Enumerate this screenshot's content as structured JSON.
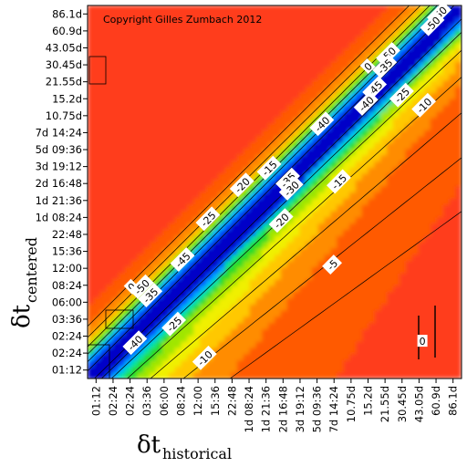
{
  "chart_data": {
    "type": "heatmap",
    "copyright": "Copyright Gilles Zumbach 2012",
    "xlabel": {
      "symbol": "δt",
      "subscript": "historical"
    },
    "ylabel": {
      "symbol": "δt",
      "subscript": "centered"
    },
    "ticks": [
      "01:12",
      "02:24",
      "02:24",
      "03:36",
      "06:00",
      "08:24",
      "12:00",
      "15:36",
      "22:48",
      "1d 08:24",
      "1d 21:36",
      "2d 16:48",
      "3d 19:12",
      "5d 09:36",
      "7d 14:24",
      "10.75d",
      "15.2d",
      "21.55d",
      "30.45d",
      "43.05d",
      "60.9d",
      "86.1d"
    ],
    "value_range": [
      -55,
      5
    ],
    "colormap": [
      "#0000c8",
      "#0050ff",
      "#00b4ff",
      "#00e6a0",
      "#28dc28",
      "#a0e600",
      "#f0f000",
      "#ffc800",
      "#ff8c00",
      "#ff5a00",
      "#ff3c1e"
    ],
    "contour_labels": [
      {
        "text": "-50",
        "ix": 20.2,
        "iy": 21.0,
        "angle": -45
      },
      {
        "text": "-50",
        "ix": 19.8,
        "iy": 20.4,
        "angle": -45
      },
      {
        "text": "-50",
        "ix": 17.2,
        "iy": 18.6,
        "angle": -45
      },
      {
        "text": "0",
        "ix": 16.0,
        "iy": 17.9,
        "angle": -45
      },
      {
        "text": "-35",
        "ix": 17.0,
        "iy": 17.9,
        "angle": -45
      },
      {
        "text": "-45",
        "ix": 16.4,
        "iy": 16.6,
        "angle": -45
      },
      {
        "text": "-25",
        "ix": 18.0,
        "iy": 16.2,
        "angle": -45
      },
      {
        "text": "-40",
        "ix": 15.9,
        "iy": 15.7,
        "angle": -45
      },
      {
        "text": "-10",
        "ix": 19.3,
        "iy": 15.6,
        "angle": -45
      },
      {
        "text": "-40",
        "ix": 13.3,
        "iy": 14.5,
        "angle": -45
      },
      {
        "text": "-15",
        "ix": 10.2,
        "iy": 11.9,
        "angle": -45
      },
      {
        "text": "-20",
        "ix": 8.6,
        "iy": 10.9,
        "angle": -45
      },
      {
        "text": "-35",
        "ix": 11.3,
        "iy": 11.2,
        "angle": -45
      },
      {
        "text": "-30",
        "ix": 11.5,
        "iy": 10.7,
        "angle": -45
      },
      {
        "text": "-15",
        "ix": 14.3,
        "iy": 11.1,
        "angle": -45
      },
      {
        "text": "-25",
        "ix": 6.6,
        "iy": 8.9,
        "angle": -45
      },
      {
        "text": "-20",
        "ix": 10.9,
        "iy": 8.8,
        "angle": -45
      },
      {
        "text": "-45",
        "ix": 5.1,
        "iy": 6.5,
        "angle": -45
      },
      {
        "text": "-5",
        "ix": 13.9,
        "iy": 6.2,
        "angle": -45
      },
      {
        "text": "0",
        "ix": 2.1,
        "iy": 4.9,
        "angle": -45
      },
      {
        "text": "-50",
        "ix": 2.7,
        "iy": 4.9,
        "angle": -45
      },
      {
        "text": "-35",
        "ix": 3.2,
        "iy": 4.4,
        "angle": -45
      },
      {
        "text": "-25",
        "ix": 4.6,
        "iy": 2.7,
        "angle": -45
      },
      {
        "text": "-40",
        "ix": 2.3,
        "iy": 1.6,
        "angle": -45
      },
      {
        "text": "-10",
        "ix": 6.4,
        "iy": 0.7,
        "angle": -45
      },
      {
        "text": "0",
        "ix": 19.2,
        "iy": 1.7,
        "angle": 0
      }
    ]
  }
}
